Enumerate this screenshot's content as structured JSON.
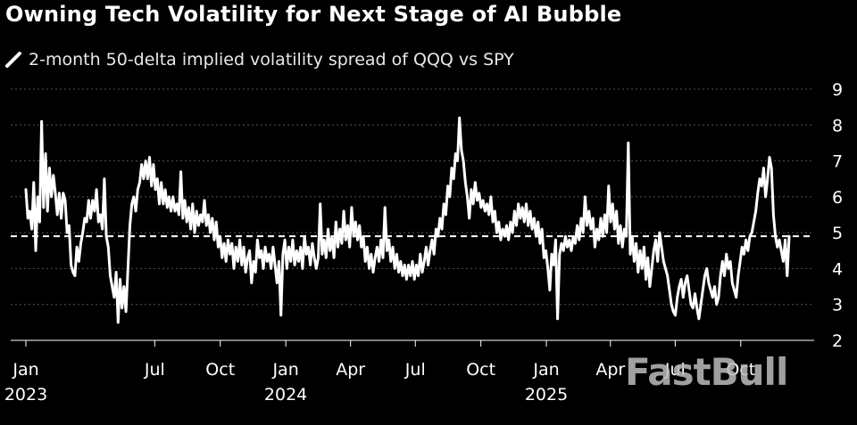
{
  "title": "Owning Tech Volatility for Next Stage of AI Bubble",
  "watermark": "FastBull",
  "colors": {
    "background": "#000000",
    "series": "#ffffff",
    "grid": "#555555",
    "average": "#ffffff"
  },
  "chart_data": {
    "type": "line",
    "title": "Owning Tech Volatility for Next Stage of AI Bubble",
    "series": [
      {
        "name": "2-month 50-delta implied volatility spread of QQQ vs SPY",
        "x_start": "2023-01-01",
        "x_end": "2025-12-08",
        "values": [
          6.2,
          5.4,
          5.6,
          5.1,
          6.4,
          4.5,
          6.0,
          5.3,
          8.1,
          5.7,
          7.2,
          5.6,
          6.8,
          6.0,
          6.6,
          6.1,
          5.5,
          6.1,
          5.4,
          6.1,
          5.9,
          5.0,
          5.2,
          4.1,
          3.9,
          3.8,
          4.6,
          4.2,
          4.7,
          5.0,
          5.4,
          5.3,
          5.9,
          5.4,
          5.9,
          5.6,
          6.2,
          5.3,
          5.5,
          5.1,
          6.5,
          4.9,
          4.6,
          3.8,
          3.5,
          3.2,
          3.9,
          2.5,
          3.7,
          2.9,
          3.5,
          2.8,
          4.0,
          5.2,
          5.8,
          6.0,
          5.6,
          6.2,
          6.4,
          6.9,
          6.5,
          7.0,
          6.5,
          7.1,
          6.3,
          6.9,
          6.2,
          6.5,
          5.8,
          6.4,
          5.8,
          6.2,
          5.7,
          6.0,
          5.6,
          6.0,
          5.6,
          5.8,
          5.5,
          6.7,
          5.4,
          5.9,
          5.3,
          5.7,
          5.1,
          5.8,
          5.0,
          5.6,
          5.2,
          5.5,
          5.3,
          5.9,
          5.2,
          5.5,
          5.0,
          5.4,
          4.8,
          5.3,
          4.6,
          4.9,
          4.3,
          4.7,
          4.2,
          4.8,
          4.4,
          4.7,
          4.0,
          4.6,
          4.2,
          4.8,
          4.1,
          4.6,
          3.9,
          4.3,
          4.5,
          3.6,
          4.2,
          3.9,
          4.8,
          4.3,
          4.5,
          4.0,
          4.6,
          4.2,
          4.4,
          4.0,
          4.6,
          4.1,
          3.6,
          4.2,
          2.7,
          4.4,
          4.8,
          4.0,
          4.6,
          4.2,
          4.8,
          4.1,
          4.5,
          4.2,
          4.6,
          4.0,
          4.9,
          4.4,
          4.6,
          4.1,
          4.7,
          4.3,
          4.0,
          4.3,
          5.8,
          4.4,
          4.8,
          4.3,
          5.1,
          4.5,
          4.9,
          4.3,
          5.3,
          4.6,
          5.1,
          4.7,
          5.6,
          4.8,
          5.2,
          4.6,
          5.7,
          4.9,
          5.3,
          4.8,
          5.2,
          4.6,
          4.9,
          4.2,
          4.6,
          4.0,
          4.4,
          3.9,
          4.3,
          4.6,
          4.2,
          4.8,
          4.3,
          5.7,
          4.5,
          4.8,
          4.2,
          4.6,
          4.0,
          4.4,
          3.9,
          4.2,
          3.8,
          4.1,
          3.7,
          4.1,
          3.8,
          4.2,
          3.7,
          4.1,
          3.8,
          4.4,
          3.9,
          4.2,
          4.6,
          4.1,
          4.5,
          4.8,
          4.4,
          5.1,
          4.9,
          5.4,
          5.1,
          5.8,
          5.5,
          6.3,
          6.0,
          6.8,
          6.5,
          7.2,
          7.0,
          8.2,
          7.3,
          7.0,
          6.4,
          6.0,
          5.4,
          6.2,
          5.8,
          6.4,
          5.9,
          6.1,
          5.7,
          5.9,
          5.6,
          5.8,
          5.5,
          6.0,
          5.3,
          5.6,
          5.0,
          5.3,
          4.8,
          5.1,
          4.9,
          5.2,
          4.8,
          5.3,
          5.0,
          5.6,
          5.2,
          5.8,
          5.4,
          5.7,
          5.3,
          5.8,
          5.2,
          5.6,
          5.1,
          5.4,
          4.9,
          5.3,
          4.7,
          5.1,
          4.3,
          4.5,
          4.0,
          3.4,
          4.4,
          4.1,
          4.8,
          2.6,
          4.4,
          4.7,
          4.5,
          4.9,
          4.6,
          4.8,
          4.5,
          4.9,
          4.7,
          5.2,
          4.8,
          5.4,
          5.0,
          6.0,
          5.2,
          5.6,
          5.1,
          5.4,
          4.6,
          5.1,
          4.8,
          5.4,
          4.9,
          5.5,
          5.0,
          6.3,
          5.3,
          5.8,
          5.1,
          5.6,
          4.7,
          5.2,
          4.6,
          5.1,
          4.9,
          7.5,
          4.4,
          4.9,
          4.2,
          4.7,
          3.9,
          4.5,
          4.0,
          4.6,
          3.7,
          4.3,
          3.5,
          4.0,
          4.5,
          4.8,
          4.2,
          5.0,
          4.6,
          4.2,
          4.0,
          3.8,
          3.4,
          3.0,
          2.8,
          2.7,
          3.2,
          3.5,
          3.7,
          3.2,
          3.6,
          3.8,
          3.4,
          3.0,
          2.9,
          3.3,
          2.9,
          2.6,
          3.0,
          3.4,
          3.8,
          4.0,
          3.6,
          3.4,
          3.2,
          3.5,
          3.0,
          3.2,
          3.8,
          4.2,
          3.8,
          4.4,
          4.0,
          4.2,
          3.6,
          3.4,
          3.2,
          3.8,
          4.2,
          4.6,
          4.4,
          4.8,
          4.5,
          4.9,
          5.0,
          5.3,
          5.6,
          6.1,
          6.5,
          6.3,
          6.8,
          6.0,
          6.5,
          7.1,
          6.8,
          5.5,
          4.9,
          4.6,
          4.8,
          4.5,
          4.2,
          4.8,
          3.8,
          4.9
        ]
      }
    ],
    "average_line": {
      "value": 4.9,
      "style": "dashed"
    },
    "y_ticks": [
      2,
      3,
      4,
      5,
      6,
      7,
      8,
      9
    ],
    "ylim": [
      2,
      9
    ],
    "y_axis_position": "right",
    "x_ticks": [
      {
        "label": "Jan",
        "sub": "2023",
        "date": "2023-01-01"
      },
      {
        "label": "Jul",
        "sub": "",
        "date": "2023-07-01"
      },
      {
        "label": "Oct",
        "sub": "",
        "date": "2023-10-01"
      },
      {
        "label": "Jan",
        "sub": "2024",
        "date": "2024-01-01"
      },
      {
        "label": "Apr",
        "sub": "",
        "date": "2024-04-01"
      },
      {
        "label": "Jul",
        "sub": "",
        "date": "2024-07-01"
      },
      {
        "label": "Oct",
        "sub": "",
        "date": "2024-10-01"
      },
      {
        "label": "Jan",
        "sub": "2025",
        "date": "2025-01-01"
      },
      {
        "label": "Apr",
        "sub": "",
        "date": "2025-04-01"
      },
      {
        "label": "Jul",
        "sub": "",
        "date": "2025-07-01"
      },
      {
        "label": "Oct",
        "sub": "",
        "date": "2025-10-01"
      }
    ],
    "legend_position": "top-left",
    "grid": true
  }
}
